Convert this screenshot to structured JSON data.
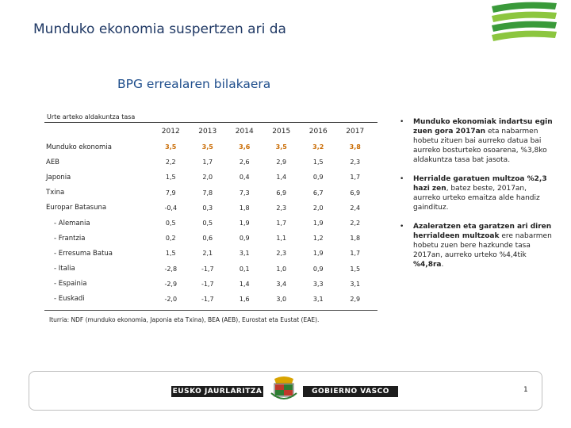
{
  "slide": {
    "title": "Munduko ekonomia suspertzen ari da",
    "section_title": "BPG errealaren bilakaera"
  },
  "table": {
    "caption": "Urte arteko aldakuntza tasa",
    "years": [
      "2012",
      "2013",
      "2014",
      "2015",
      "2016",
      "2017"
    ],
    "rows": [
      {
        "label": "Munduko ekonomia",
        "values": [
          "3,5",
          "3,5",
          "3,6",
          "3,5",
          "3,2",
          "3,8"
        ]
      },
      {
        "label": "AEB",
        "values": [
          "2,2",
          "1,7",
          "2,6",
          "2,9",
          "1,5",
          "2,3"
        ]
      },
      {
        "label": "Japonia",
        "values": [
          "1,5",
          "2,0",
          "0,4",
          "1,4",
          "0,9",
          "1,7"
        ]
      },
      {
        "label": "Txina",
        "values": [
          "7,9",
          "7,8",
          "7,3",
          "6,9",
          "6,7",
          "6,9"
        ]
      },
      {
        "label": "Europar Batasuna",
        "values": [
          "-0,4",
          "0,3",
          "1,8",
          "2,3",
          "2,0",
          "2,4"
        ]
      },
      {
        "label": "- Alemania",
        "values": [
          "0,5",
          "0,5",
          "1,9",
          "1,7",
          "1,9",
          "2,2"
        ]
      },
      {
        "label": "- Frantzia",
        "values": [
          "0,2",
          "0,6",
          "0,9",
          "1,1",
          "1,2",
          "1,8"
        ]
      },
      {
        "label": "- Erresuma Batua",
        "values": [
          "1,5",
          "2,1",
          "3,1",
          "2,3",
          "1,9",
          "1,7"
        ]
      },
      {
        "label": "- Italia",
        "values": [
          "-2,8",
          "-1,7",
          "0,1",
          "1,0",
          "0,9",
          "1,5"
        ]
      },
      {
        "label": "- Espainia",
        "values": [
          "-2,9",
          "-1,7",
          "1,4",
          "3,4",
          "3,3",
          "3,1"
        ]
      },
      {
        "label": "- Euskadi",
        "values": [
          "-2,0",
          "-1,7",
          "1,6",
          "3,0",
          "3,1",
          "2,9"
        ]
      }
    ],
    "source": "Iturria: NDF (munduko ekonomia, Japonia eta Txina), BEA (AEB), Eurostat eta Eustat (EAE)."
  },
  "bullets": [
    {
      "bold": "Munduko ekonomiak indartsu egin zuen gora 2017an",
      "text": " eta nabarmen hobetu zituen bai aurreko datua bai aurreko bosturteko osoarena, %3,8ko aldakuntza tasa bat jasota."
    },
    {
      "bold": "Herrialde garatuen multzoa %2,3 hazi zen",
      "text": ", batez beste, 2017an, aurreko urteko emaitza alde handiz gaindituz."
    },
    {
      "bold": "Azaleratzen eta garatzen ari diren herrialdeen multzoak",
      "text": " ere nabarmen hobetu zuen bere hazkunde tasa 2017an, aurreko urteko %4,4tik ",
      "bold_end": "%4,8ra",
      "tail": "."
    }
  ],
  "footer": {
    "gov_left": "EUSKO JAURLARITZA",
    "gov_right": "GOBIERNO VASCO",
    "page_number": "1"
  },
  "colors": {
    "title": "#1f3864",
    "section_title": "#1f4e8c",
    "highlight_values": "#c96a00",
    "corner_logo": "#3a9a3a"
  },
  "icons": {
    "corner_logo": "stacked-leaves-logo-icon",
    "emblem": "basque-coat-of-arms-icon",
    "bullet": "bullet-dot-icon"
  }
}
